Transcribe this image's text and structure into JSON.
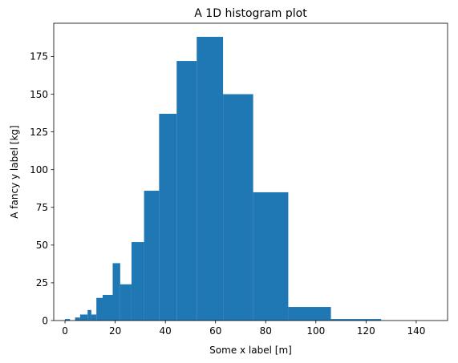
{
  "chart_data": {
    "type": "bar",
    "title": "A 1D histogram plot",
    "xlabel": "Some x label [m]",
    "ylabel": "A fancy y label [kg]",
    "xlim": [
      -4.5,
      152.5
    ],
    "ylim": [
      0,
      197
    ],
    "xticks": [
      0,
      20,
      40,
      60,
      80,
      100,
      120,
      140
    ],
    "yticks": [
      0,
      25,
      50,
      75,
      100,
      125,
      150,
      175
    ],
    "grid": false,
    "bar_color": "#1f77b4",
    "bins": [
      {
        "x0": 0,
        "x1": 2,
        "value": 1
      },
      {
        "x0": 2,
        "x1": 4,
        "value": 0
      },
      {
        "x0": 4,
        "x1": 6,
        "value": 2
      },
      {
        "x0": 6,
        "x1": 9,
        "value": 4
      },
      {
        "x0": 9,
        "x1": 10.5,
        "value": 7
      },
      {
        "x0": 10.5,
        "x1": 12.5,
        "value": 4
      },
      {
        "x0": 12.5,
        "x1": 15,
        "value": 15
      },
      {
        "x0": 15,
        "x1": 19,
        "value": 17
      },
      {
        "x0": 19,
        "x1": 22,
        "value": 38
      },
      {
        "x0": 22,
        "x1": 26.5,
        "value": 24
      },
      {
        "x0": 26.5,
        "x1": 31.5,
        "value": 52
      },
      {
        "x0": 31.5,
        "x1": 37.5,
        "value": 86
      },
      {
        "x0": 37.5,
        "x1": 44.5,
        "value": 137
      },
      {
        "x0": 44.5,
        "x1": 52.5,
        "value": 172
      },
      {
        "x0": 52.5,
        "x1": 63,
        "value": 188
      },
      {
        "x0": 63,
        "x1": 75,
        "value": 150
      },
      {
        "x0": 75,
        "x1": 89,
        "value": 85
      },
      {
        "x0": 89,
        "x1": 106,
        "value": 9
      },
      {
        "x0": 106,
        "x1": 126,
        "value": 1
      },
      {
        "x0": 126,
        "x1": 150,
        "value": 0
      }
    ]
  }
}
